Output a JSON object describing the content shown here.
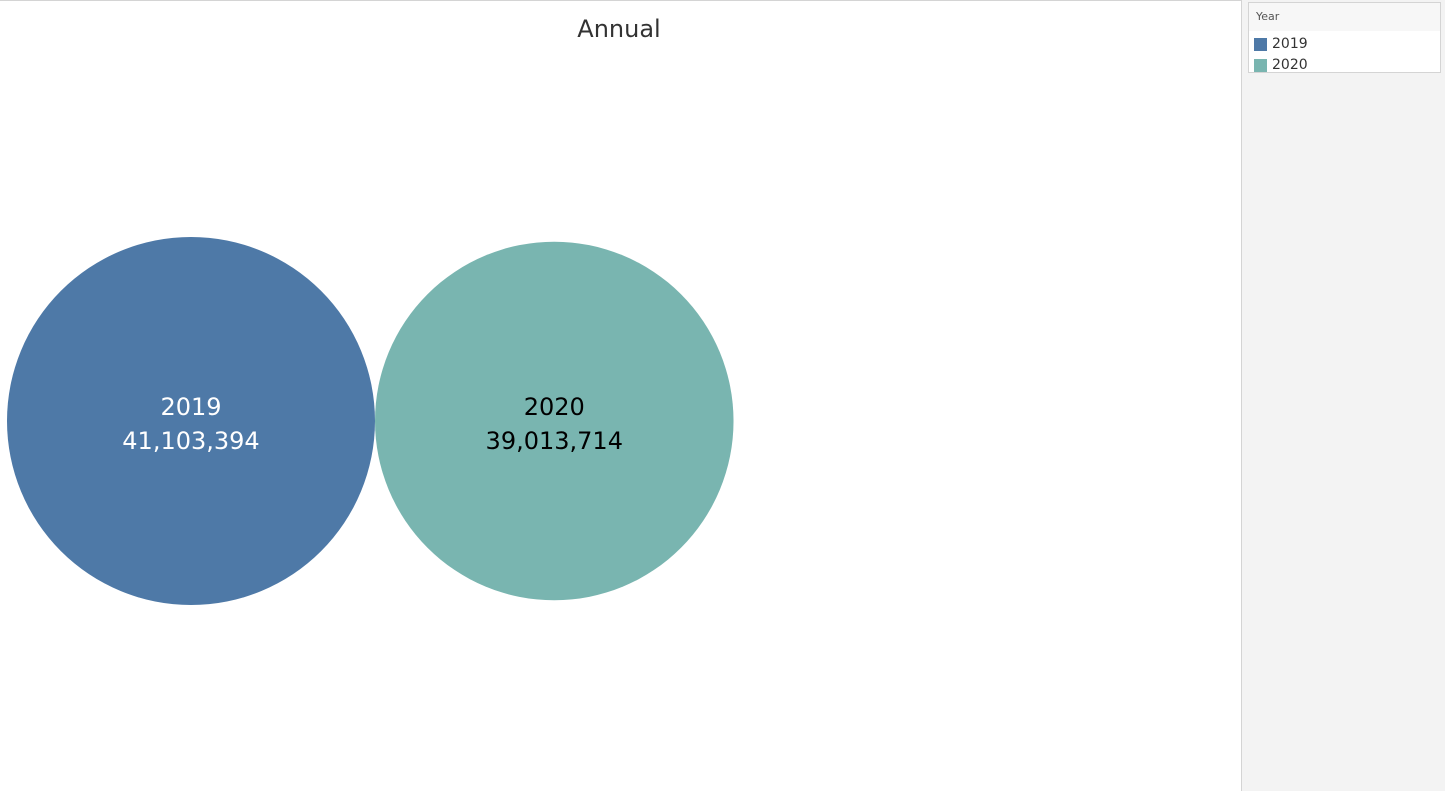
{
  "chart_data": {
    "type": "bubble",
    "title": "Annual",
    "categories": [
      "2019",
      "2020"
    ],
    "values": [
      41103394,
      39013714
    ],
    "value_labels": [
      "41,103,394",
      "39,013,714"
    ],
    "colors": [
      "#4e79a7",
      "#79b5b0"
    ],
    "label_colors": [
      "#ffffff",
      "#000000"
    ],
    "legend": {
      "title": "Year",
      "position": "right",
      "items": [
        {
          "label": "2019",
          "color": "#4e79a7"
        },
        {
          "label": "2020",
          "color": "#79b5b0"
        }
      ]
    }
  }
}
